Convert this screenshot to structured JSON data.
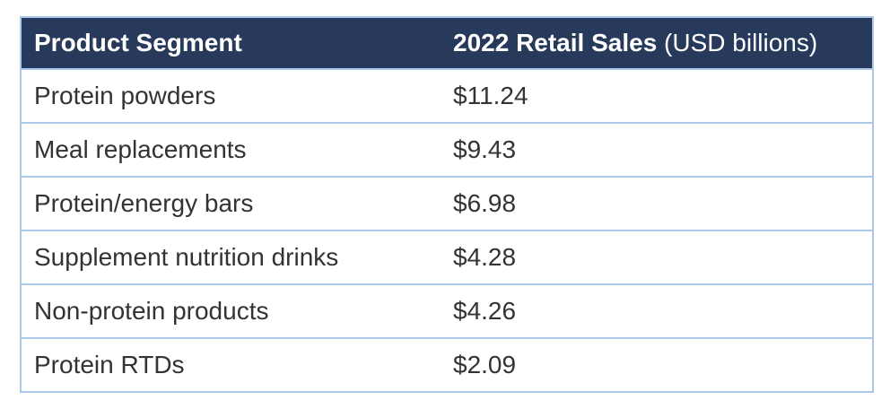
{
  "header": {
    "col1_label": "Product Segment",
    "col2_label_bold": "2022 Retail Sales",
    "col2_label_note": " (USD billions)"
  },
  "chart_data": {
    "type": "table",
    "title": "",
    "columns": [
      "Product Segment",
      "2022 Retail Sales (USD billions)"
    ],
    "rows": [
      {
        "segment": "Protein powders",
        "display_value": "$11.24",
        "value": 11.24
      },
      {
        "segment": "Meal replacements",
        "display_value": "$9.43",
        "value": 9.43
      },
      {
        "segment": "Protein/energy bars",
        "display_value": "$6.98",
        "value": 6.98
      },
      {
        "segment": "Supplement nutrition drinks",
        "display_value": "$4.28",
        "value": 4.28
      },
      {
        "segment": "Non-protein products",
        "display_value": "$4.26",
        "value": 4.26
      },
      {
        "segment": "Protein RTDs",
        "display_value": "$2.09",
        "value": 2.09
      }
    ],
    "value_unit": "USD billions",
    "value_prefix": "$"
  },
  "colors": {
    "header_bg": "#283A5B",
    "header_text": "#FFFFFF",
    "border": "#ACC8E8",
    "body_text": "#333333",
    "page_bg": "#FFFFFF"
  }
}
